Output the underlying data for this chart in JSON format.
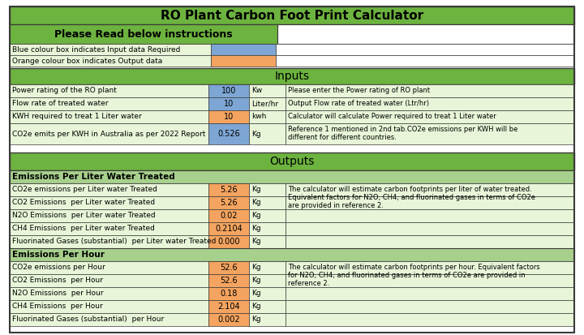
{
  "title": "RO Plant Carbon Foot Print Calculator",
  "title_bg": "#6db33f",
  "instructions_header": "Please Read below instructions",
  "instructions_bg": "#6db33f",
  "legend_rows": [
    {
      "label": "Blue colour box indicates Input data Required",
      "box_color": "#7da6d4"
    },
    {
      "label": "Orange colour box indicates Output data",
      "box_color": "#f4a460"
    }
  ],
  "inputs_header": "Inputs",
  "inputs_bg": "#6db33f",
  "inputs_rows": [
    {
      "label": "Power rating of the RO plant",
      "value": "100",
      "unit": "Kw",
      "note": "Please enter the Power rating of RO plant",
      "value_bg": "#7da6d4"
    },
    {
      "label": "Flow rate of treated water",
      "value": "10",
      "unit": "Liter/hr",
      "note": "Output Flow rate of treated water (Ltr/hr)",
      "value_bg": "#7da6d4"
    },
    {
      "label": "KWH required to treat 1 Liter water",
      "value": "10",
      "unit": "kwh",
      "note": "Calculator will calculate Power required to treat 1 Liter water",
      "value_bg": "#f4a460"
    },
    {
      "label": "CO2e emits per KWH in Australia as per 2022 Report",
      "value": "0.526",
      "unit": "Kg",
      "note": "Reference 1 mentioned in 2nd tab.CO2e emissions per KWH will be\ndifferent for different countries.",
      "value_bg": "#7da6d4"
    }
  ],
  "outputs_header": "Outputs",
  "outputs_bg": "#6db33f",
  "per_liter_header": "Emissions Per Liter Water Treated",
  "per_liter_header_bg": "#a8d08d",
  "per_liter_rows": [
    {
      "label": "CO2e emissions per Liter water Treated",
      "value": "5.26",
      "unit": "Kg",
      "note": "The calculator will estimate carbon footprints per liter of water treated.\nEquivalent factors for N2O, CH4, and fluorinated gases in terms of CO2e\nare provided in reference 2.",
      "value_bg": "#f4a460"
    },
    {
      "label": "CO2 Emissions  per Liter water Treated",
      "value": "5.26",
      "unit": "Kg",
      "note": "",
      "value_bg": "#f4a460"
    },
    {
      "label": "N2O Emissions  per Liter water Treated",
      "value": "0.02",
      "unit": "Kg",
      "note": "",
      "value_bg": "#f4a460"
    },
    {
      "label": "CH4 Emissions  per Liter water Treated",
      "value": "0.2104",
      "unit": "Kg",
      "note": "",
      "value_bg": "#f4a460"
    },
    {
      "label": "Fluorinated Gases (substantial)  per Liter water Treated",
      "value": "0.000",
      "unit": "Kg",
      "note": "",
      "value_bg": "#f4a460"
    }
  ],
  "per_hour_header": "Emissions Per Hour",
  "per_hour_header_bg": "#a8d08d",
  "per_hour_rows": [
    {
      "label": "CO2e emissions per Hour",
      "value": "52.6",
      "unit": "Kg",
      "note": "The calculator will estimate carbon footprints per hour. Equivalent factors\nfor N2O, CH4, and fluorinated gases in terms of CO2e are provided in\nreference 2.",
      "value_bg": "#f4a460"
    },
    {
      "label": "CO2 Emissions  per Hour",
      "value": "52.6",
      "unit": "Kg",
      "note": "",
      "value_bg": "#f4a460"
    },
    {
      "label": "N2O Emissions  per Hour",
      "value": "0.18",
      "unit": "Kg",
      "note": "",
      "value_bg": "#f4a460"
    },
    {
      "label": "CH4 Emissions  per Hour",
      "value": "2.104",
      "unit": "Kg",
      "note": "",
      "value_bg": "#f4a460"
    },
    {
      "label": "Fluorinated Gases (substantial)  per Hour",
      "value": "0.002",
      "unit": "Kg",
      "note": "",
      "value_bg": "#f4a460"
    }
  ],
  "row_bg_light": "#e8f5d8",
  "border_color": "#3a3a3a"
}
